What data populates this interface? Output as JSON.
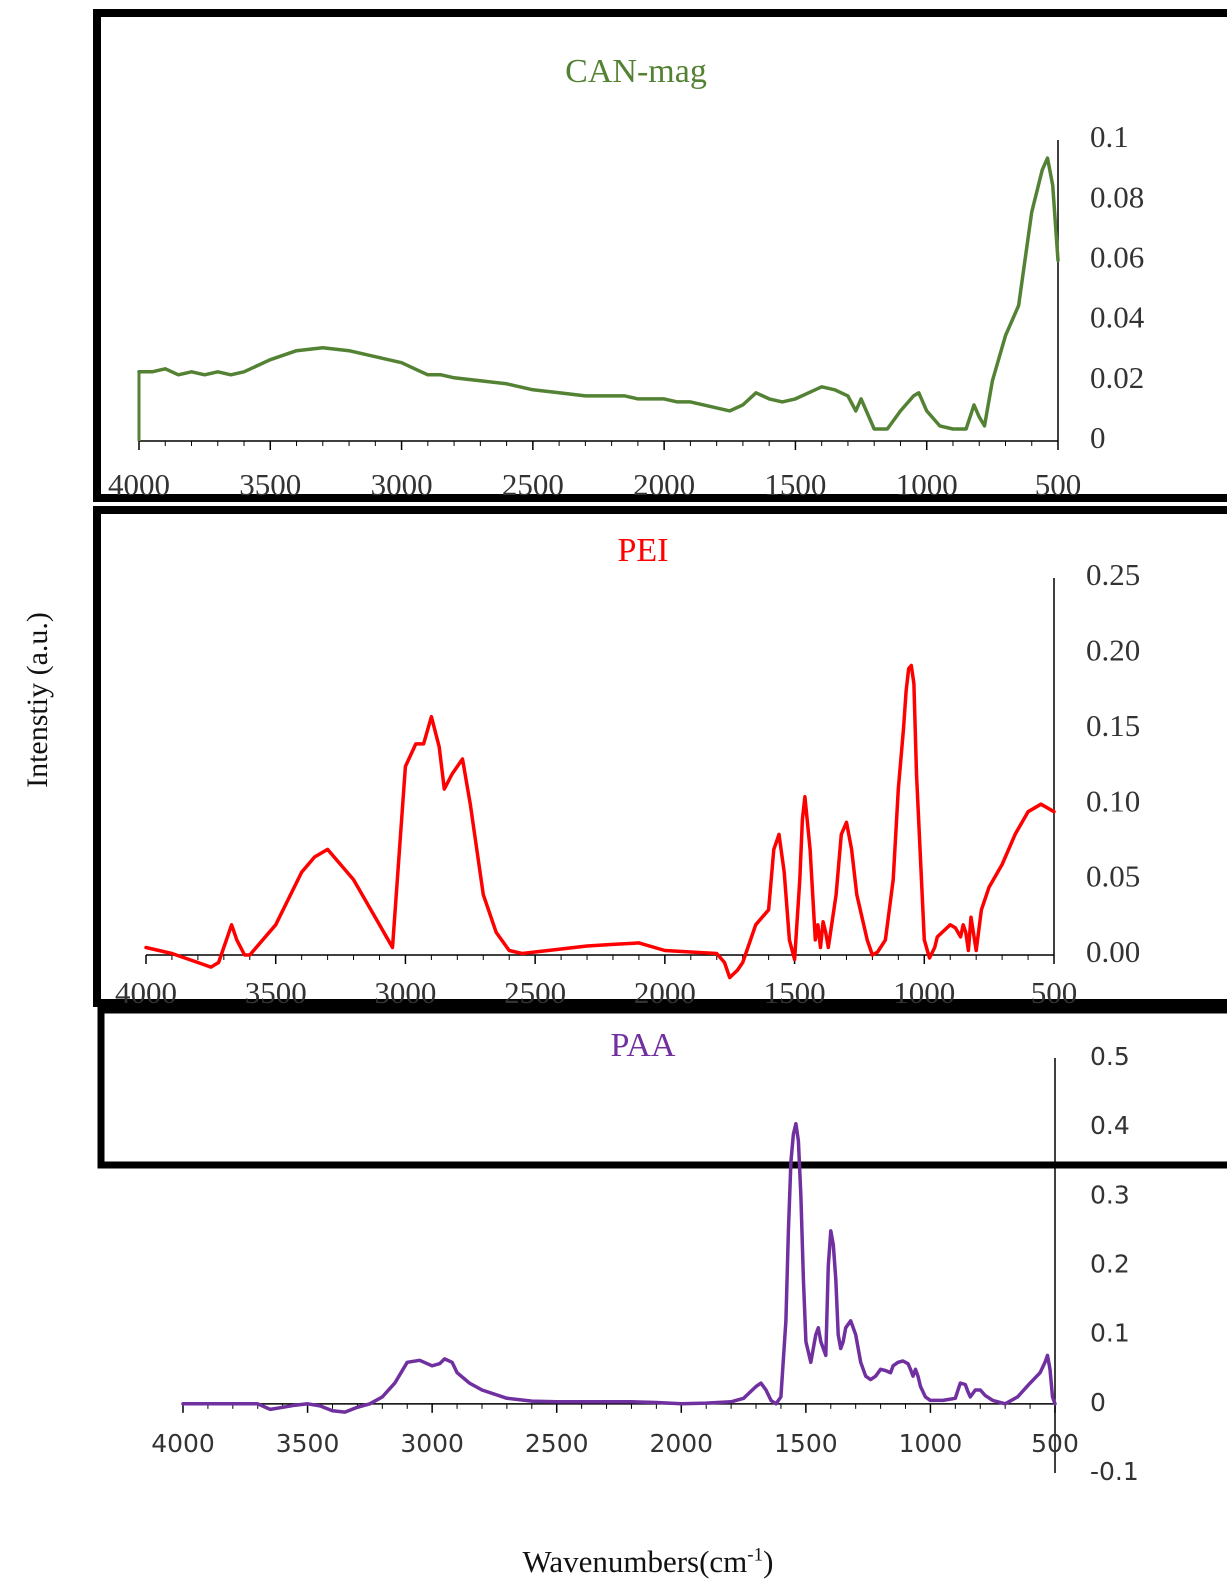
{
  "figure": {
    "y_axis_label": "Intenstiy (a.u.)",
    "x_axis_label_main": "Wavenumbers(cm",
    "x_axis_label_sup": "-1",
    "x_axis_label_close": ")"
  },
  "chart_data": [
    {
      "type": "line",
      "title": "CAN-mag",
      "color": "#548235",
      "xlabel": "",
      "ylabel": "",
      "xlim": [
        4000,
        500
      ],
      "ylim": [
        0,
        0.1
      ],
      "x_ticks": [
        "4000",
        "3500",
        "3000",
        "2500",
        "2000",
        "1500",
        "1000",
        "500"
      ],
      "y_ticks": [
        "0",
        "0.02",
        "0.04",
        "0.06",
        "0.08",
        "0.1"
      ],
      "series": [
        {
          "x": [
            4000,
            3950,
            3900,
            3850,
            3800,
            3750,
            3700,
            3650,
            3600,
            3500,
            3400,
            3300,
            3200,
            3100,
            3000,
            2950,
            2900,
            2850,
            2800,
            2700,
            2600,
            2500,
            2400,
            2300,
            2200,
            2150,
            2100,
            2050,
            2000,
            1950,
            1900,
            1800,
            1750,
            1700,
            1650,
            1600,
            1550,
            1500,
            1450,
            1400,
            1350,
            1300,
            1270,
            1250,
            1200,
            1150,
            1100,
            1050,
            1030,
            1000,
            950,
            900,
            850,
            820,
            800,
            780,
            750,
            700,
            650,
            600,
            560,
            540,
            520,
            500
          ],
          "y": [
            0.023,
            0.023,
            0.024,
            0.022,
            0.023,
            0.022,
            0.023,
            0.022,
            0.023,
            0.027,
            0.03,
            0.031,
            0.03,
            0.028,
            0.026,
            0.024,
            0.022,
            0.022,
            0.021,
            0.02,
            0.019,
            0.017,
            0.016,
            0.015,
            0.015,
            0.015,
            0.014,
            0.014,
            0.014,
            0.013,
            0.013,
            0.011,
            0.01,
            0.012,
            0.016,
            0.014,
            0.013,
            0.014,
            0.016,
            0.018,
            0.017,
            0.015,
            0.01,
            0.014,
            0.004,
            0.004,
            0.01,
            0.015,
            0.016,
            0.01,
            0.005,
            0.004,
            0.004,
            0.012,
            0.008,
            0.005,
            0.02,
            0.035,
            0.045,
            0.076,
            0.09,
            0.094,
            0.085,
            0.06
          ]
        }
      ]
    },
    {
      "type": "line",
      "title": "PEI",
      "color": "#ff0000",
      "xlabel": "",
      "ylabel": "",
      "xlim": [
        4000,
        500
      ],
      "ylim": [
        0,
        0.25
      ],
      "x_ticks": [
        "4000",
        "3500",
        "3000",
        "2500",
        "2000",
        "1500",
        "1000",
        "500"
      ],
      "y_ticks": [
        "0.00",
        "0.05",
        "0.10",
        "0.15",
        "0.20",
        "0.25"
      ],
      "series": [
        {
          "x": [
            4000,
            3900,
            3800,
            3750,
            3720,
            3690,
            3670,
            3650,
            3620,
            3600,
            3500,
            3400,
            3350,
            3300,
            3200,
            3100,
            3050,
            3000,
            2960,
            2930,
            2900,
            2870,
            2850,
            2820,
            2780,
            2750,
            2700,
            2650,
            2600,
            2550,
            2500,
            2400,
            2300,
            2200,
            2100,
            2000,
            1900,
            1800,
            1770,
            1750,
            1720,
            1700,
            1680,
            1650,
            1600,
            1580,
            1560,
            1540,
            1520,
            1500,
            1480,
            1470,
            1460,
            1440,
            1420,
            1410,
            1400,
            1390,
            1380,
            1370,
            1340,
            1320,
            1300,
            1280,
            1260,
            1240,
            1220,
            1200,
            1180,
            1150,
            1120,
            1100,
            1080,
            1070,
            1060,
            1050,
            1040,
            1030,
            1000,
            980,
            960,
            950,
            900,
            880,
            860,
            850,
            840,
            830,
            820,
            800,
            780,
            750,
            700,
            650,
            600,
            550,
            500
          ],
          "y": [
            0.005,
            0.001,
            -0.005,
            -0.008,
            -0.005,
            0.01,
            0.02,
            0.01,
            0.0,
            0.0,
            0.02,
            0.055,
            0.065,
            0.07,
            0.05,
            0.02,
            0.005,
            0.125,
            0.14,
            0.14,
            0.158,
            0.138,
            0.11,
            0.12,
            0.13,
            0.1,
            0.04,
            0.015,
            0.003,
            0.001,
            0.002,
            0.004,
            0.006,
            0.007,
            0.008,
            0.003,
            0.002,
            0.001,
            -0.005,
            -0.015,
            -0.01,
            -0.005,
            0.005,
            0.02,
            0.03,
            0.07,
            0.08,
            0.055,
            0.01,
            -0.003,
            0.05,
            0.09,
            0.105,
            0.07,
            0.01,
            0.02,
            0.005,
            0.022,
            0.015,
            0.005,
            0.04,
            0.08,
            0.088,
            0.07,
            0.04,
            0.025,
            0.01,
            0.0,
            0.002,
            0.01,
            0.05,
            0.11,
            0.15,
            0.175,
            0.19,
            0.192,
            0.18,
            0.12,
            0.01,
            -0.002,
            0.005,
            0.012,
            0.02,
            0.018,
            0.012,
            0.02,
            0.015,
            0.003,
            0.025,
            0.003,
            0.03,
            0.045,
            0.06,
            0.08,
            0.095,
            0.1,
            0.095
          ]
        }
      ]
    },
    {
      "type": "line",
      "title": "PAA",
      "color": "#7030a0",
      "xlabel": "",
      "ylabel": "",
      "xlim": [
        4000,
        500
      ],
      "ylim": [
        -0.1,
        0.5
      ],
      "x_ticks": [
        "4000",
        "3500",
        "3000",
        "2500",
        "2000",
        "1500",
        "1000",
        "500"
      ],
      "y_ticks": [
        "0.5",
        "0.4",
        "0.3",
        "0.2",
        "0.1",
        "0",
        "-0.1"
      ],
      "series": [
        {
          "x": [
            4000,
            3900,
            3800,
            3700,
            3650,
            3600,
            3550,
            3500,
            3450,
            3400,
            3350,
            3300,
            3250,
            3200,
            3150,
            3100,
            3050,
            3000,
            2970,
            2950,
            2920,
            2900,
            2850,
            2800,
            2700,
            2600,
            2500,
            2400,
            2300,
            2200,
            2100,
            2000,
            1900,
            1800,
            1750,
            1700,
            1680,
            1660,
            1640,
            1620,
            1600,
            1580,
            1570,
            1560,
            1550,
            1540,
            1530,
            1520,
            1510,
            1500,
            1480,
            1460,
            1450,
            1440,
            1420,
            1410,
            1400,
            1390,
            1380,
            1370,
            1360,
            1350,
            1340,
            1320,
            1300,
            1280,
            1260,
            1240,
            1220,
            1200,
            1180,
            1160,
            1150,
            1130,
            1110,
            1090,
            1080,
            1070,
            1060,
            1050,
            1040,
            1020,
            1000,
            950,
            900,
            880,
            860,
            850,
            840,
            830,
            820,
            800,
            780,
            750,
            700,
            650,
            600,
            560,
            540,
            530,
            520,
            510,
            500
          ],
          "y": [
            0.0,
            0.0,
            0.0,
            0.0,
            -0.008,
            -0.005,
            -0.002,
            0.0,
            -0.003,
            -0.01,
            -0.012,
            -0.005,
            0.0,
            0.01,
            0.03,
            0.06,
            0.063,
            0.055,
            0.058,
            0.065,
            0.06,
            0.045,
            0.03,
            0.02,
            0.008,
            0.004,
            0.003,
            0.003,
            0.003,
            0.003,
            0.002,
            0.0,
            0.001,
            0.003,
            0.008,
            0.025,
            0.03,
            0.02,
            0.005,
            0.0,
            0.01,
            0.12,
            0.25,
            0.35,
            0.39,
            0.405,
            0.38,
            0.3,
            0.18,
            0.09,
            0.06,
            0.1,
            0.11,
            0.09,
            0.07,
            0.2,
            0.25,
            0.23,
            0.18,
            0.1,
            0.08,
            0.09,
            0.11,
            0.12,
            0.1,
            0.06,
            0.04,
            0.035,
            0.04,
            0.05,
            0.048,
            0.045,
            0.055,
            0.06,
            0.062,
            0.058,
            0.05,
            0.04,
            0.05,
            0.04,
            0.025,
            0.01,
            0.005,
            0.005,
            0.008,
            0.03,
            0.028,
            0.018,
            0.01,
            0.015,
            0.02,
            0.02,
            0.012,
            0.005,
            0.0,
            0.01,
            0.03,
            0.045,
            0.06,
            0.07,
            0.05,
            0.01,
            0.0
          ]
        }
      ]
    }
  ]
}
